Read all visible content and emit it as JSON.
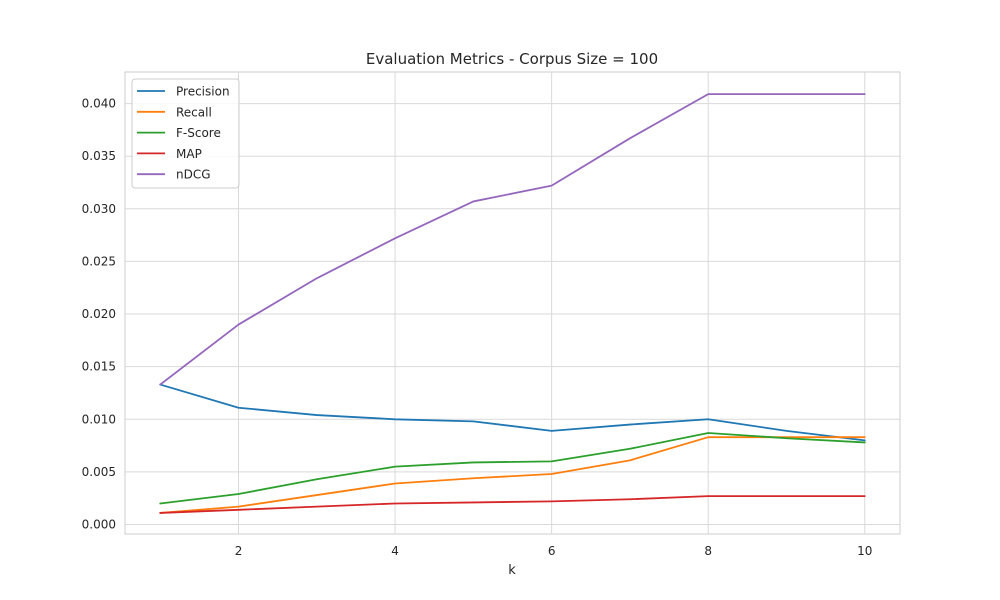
{
  "chart_data": {
    "type": "line",
    "title": "Evaluation Metrics - Corpus Size = 100",
    "xlabel": "k",
    "ylabel": "",
    "xlim": [
      0.55,
      10.45
    ],
    "ylim": [
      -0.0009,
      0.043
    ],
    "xticks": [
      2,
      4,
      6,
      8,
      10
    ],
    "yticks": [
      0.0,
      0.005,
      0.01,
      0.015,
      0.02,
      0.025,
      0.03,
      0.035,
      0.04
    ],
    "ytick_labels": [
      "0.000",
      "0.005",
      "0.010",
      "0.015",
      "0.020",
      "0.025",
      "0.030",
      "0.035",
      "0.040"
    ],
    "grid": true,
    "legend_position": "top-left",
    "x": [
      1,
      2,
      3,
      4,
      5,
      6,
      7,
      8,
      9,
      10
    ],
    "series": [
      {
        "name": "Precision",
        "color": "#1f77b4",
        "values": [
          0.0133,
          0.0111,
          0.0104,
          0.01,
          0.0098,
          0.0089,
          0.0095,
          0.01,
          0.0089,
          0.008
        ]
      },
      {
        "name": "Recall",
        "color": "#ff7f0e",
        "values": [
          0.0011,
          0.0017,
          0.0028,
          0.0039,
          0.0044,
          0.0048,
          0.0061,
          0.0083,
          0.0083,
          0.0083
        ]
      },
      {
        "name": "F-Score",
        "color": "#2ca02c",
        "values": [
          0.002,
          0.0029,
          0.0043,
          0.0055,
          0.0059,
          0.006,
          0.0072,
          0.0087,
          0.0082,
          0.0078
        ]
      },
      {
        "name": "MAP",
        "color": "#d62728",
        "values": [
          0.0011,
          0.0014,
          0.0017,
          0.002,
          0.0021,
          0.0022,
          0.0024,
          0.0027,
          0.0027,
          0.0027
        ]
      },
      {
        "name": "nDCG",
        "color": "#9467bd",
        "values": [
          0.0133,
          0.019,
          0.0234,
          0.0272,
          0.0307,
          0.0322,
          0.0367,
          0.0409,
          0.0409,
          0.0409
        ]
      }
    ]
  }
}
